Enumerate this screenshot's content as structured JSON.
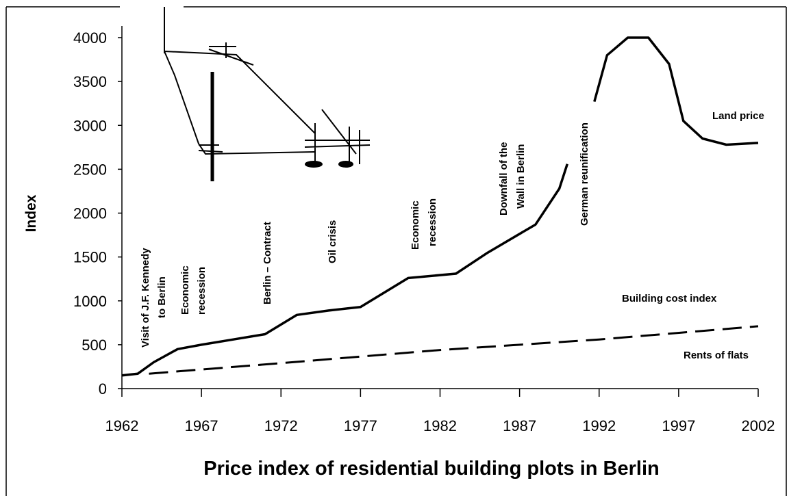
{
  "chart_data": {
    "type": "line",
    "title": "Price index of residential building plots in Berlin",
    "y_label": "Index",
    "xlim": [
      1962,
      2002
    ],
    "xticks": [
      1962,
      1967,
      1972,
      1977,
      1982,
      1987,
      1992,
      1997,
      2002
    ],
    "ylim": [
      0,
      4000
    ],
    "yticks": [
      0,
      500,
      1000,
      1500,
      2000,
      2500,
      3000,
      3500,
      4000
    ],
    "series": [
      {
        "name": "Land price",
        "color": "#000000",
        "dash": false,
        "x": [
          1962,
          1963,
          1964,
          1965.5,
          1967,
          1969,
          1971,
          1973,
          1975,
          1977,
          1979,
          1980,
          1983,
          1985,
          1988,
          1989.5,
          1990,
          null,
          1991.7,
          1992.5,
          1993.8,
          1995.1,
          1996.4,
          1997.3,
          1998.5,
          2000,
          2002
        ],
        "values": [
          150,
          170,
          300,
          450,
          500,
          560,
          620,
          840,
          890,
          930,
          1150,
          1260,
          1310,
          1550,
          1870,
          2280,
          2560,
          null,
          3270,
          3800,
          4000,
          4000,
          3700,
          3050,
          2850,
          2780,
          2800
        ]
      },
      {
        "name": "Rents of flats",
        "color": "#000000",
        "dash": true,
        "x": [
          1963.7,
          1972,
          1982,
          1992,
          2002
        ],
        "values": [
          170,
          290,
          440,
          560,
          710
        ]
      }
    ],
    "annotations": [
      {
        "lines": [
          "Visit of J.F. Kennedy",
          "to Berlin"
        ]
      },
      {
        "lines": [
          "Economic",
          "recession"
        ]
      },
      {
        "lines": [
          "Berlin – Contract"
        ]
      },
      {
        "lines": [
          "Oil crisis"
        ]
      },
      {
        "lines": [
          "Economic",
          "recession"
        ]
      },
      {
        "lines": [
          "Downfall of the",
          "Wall in Berlin"
        ]
      },
      {
        "lines": [
          "German reunification"
        ]
      },
      {
        "lines": [
          "Building cost index"
        ]
      }
    ]
  }
}
